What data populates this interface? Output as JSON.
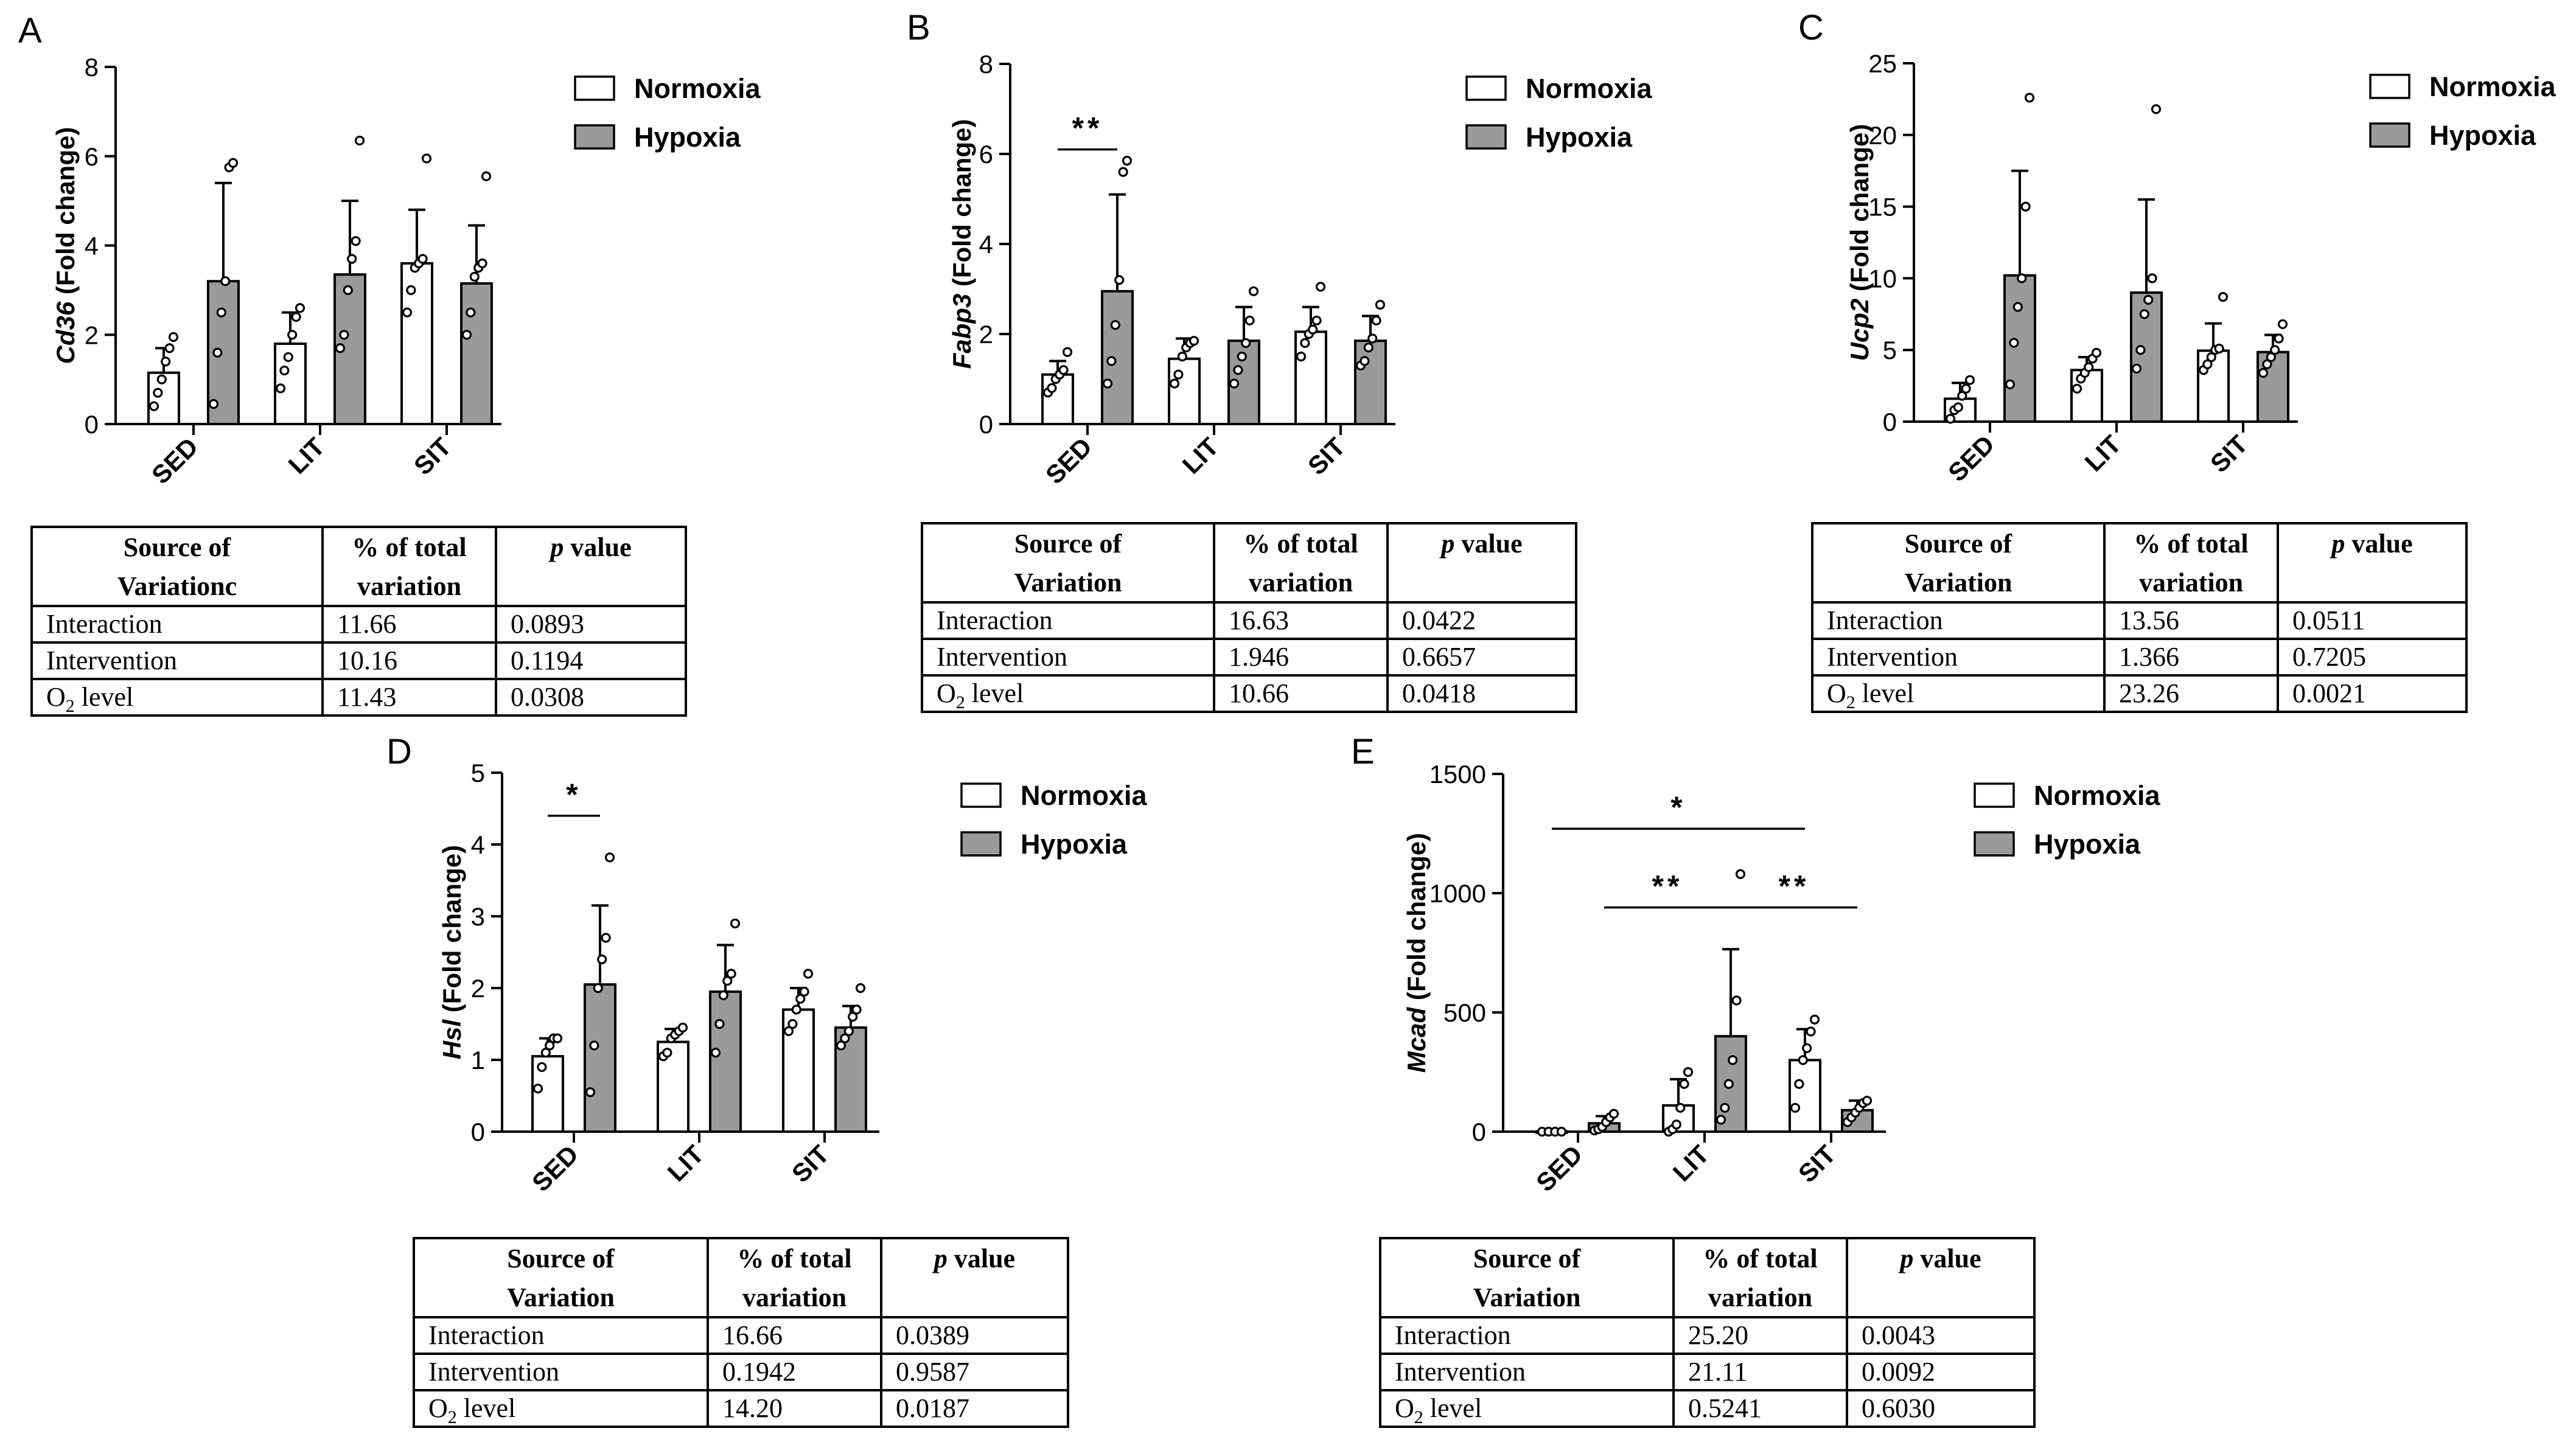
{
  "legend": {
    "normoxia": "Normoxia",
    "hypoxia": "Hypoxia"
  },
  "colors": {
    "normoxia": "#ffffff",
    "hypoxia": "#9a9a9a",
    "stroke": "#000000"
  },
  "table_headers": {
    "source_line1": "Source  of",
    "source_line2_default": "Variation",
    "pct_line1": "% of total",
    "pct_line2": "variation",
    "p_italic": "p",
    "p_rest": " value"
  },
  "chart_data": [
    {
      "panel": "A",
      "type": "bar",
      "gene": "Cd36",
      "ylabel_rest": " (Fold change)",
      "categories": [
        "SED",
        "LIT",
        "SIT"
      ],
      "ylim": [
        0,
        8
      ],
      "yticks": [
        0,
        2,
        4,
        6,
        8
      ],
      "series": [
        {
          "name": "Normoxia",
          "values": [
            1.15,
            1.8,
            3.6
          ],
          "sd": [
            0.55,
            0.7,
            1.2
          ],
          "points": [
            [
              0.4,
              0.7,
              1.0,
              1.4,
              1.7,
              1.95
            ],
            [
              0.8,
              1.2,
              1.5,
              2.0,
              2.4,
              2.6
            ],
            [
              2.5,
              3.0,
              3.5,
              3.6,
              3.7,
              5.95
            ]
          ]
        },
        {
          "name": "Hypoxia",
          "values": [
            3.2,
            3.35,
            3.15
          ],
          "sd": [
            2.2,
            1.65,
            1.3
          ],
          "points": [
            [
              0.45,
              1.6,
              2.5,
              3.2,
              5.75,
              5.85
            ],
            [
              1.7,
              2.0,
              3.0,
              3.7,
              4.1,
              6.35
            ],
            [
              2.0,
              2.5,
              3.3,
              3.5,
              3.6,
              5.55
            ]
          ]
        }
      ],
      "significance": [],
      "table": {
        "source_line2": "Variationc",
        "rows": [
          {
            "source": "Interaction",
            "pct": "11.66",
            "p": "0.0893"
          },
          {
            "source": "Intervention",
            "pct": "10.16",
            "p": "0.1194"
          },
          {
            "source_main": "O",
            "source_sub": "2",
            "source_rest": " level",
            "pct": "11.43",
            "p": "0.0308"
          }
        ]
      }
    },
    {
      "panel": "B",
      "type": "bar",
      "gene": "Fabp3",
      "ylabel_rest": " (Fold change)",
      "categories": [
        "SED",
        "LIT",
        "SIT"
      ],
      "ylim": [
        0,
        8
      ],
      "yticks": [
        0,
        2,
        4,
        6,
        8
      ],
      "series": [
        {
          "name": "Normoxia",
          "values": [
            1.1,
            1.45,
            2.05
          ],
          "sd": [
            0.3,
            0.45,
            0.55
          ],
          "points": [
            [
              0.7,
              0.8,
              1.0,
              1.1,
              1.2,
              1.6
            ],
            [
              0.9,
              1.1,
              1.5,
              1.7,
              1.8,
              1.85
            ],
            [
              1.5,
              1.8,
              2.0,
              2.1,
              2.3,
              3.05
            ]
          ]
        },
        {
          "name": "Hypoxia",
          "values": [
            2.95,
            1.85,
            1.85
          ],
          "sd": [
            2.15,
            0.75,
            0.55
          ],
          "points": [
            [
              0.9,
              1.4,
              2.2,
              3.2,
              5.6,
              5.85
            ],
            [
              0.9,
              1.2,
              1.5,
              1.8,
              2.3,
              2.95
            ],
            [
              1.3,
              1.4,
              1.7,
              1.9,
              2.3,
              2.65
            ]
          ]
        }
      ],
      "significance": [
        {
          "label": "**",
          "from": [
            0,
            0
          ],
          "to": [
            0,
            1
          ],
          "y": 6.1
        }
      ],
      "table": {
        "source_line2": "Variation",
        "rows": [
          {
            "source": "Interaction",
            "pct": "16.63",
            "p": "0.0422"
          },
          {
            "source": "Intervention",
            "pct": "1.946",
            "p": "0.6657"
          },
          {
            "source_main": "O",
            "source_sub": "2",
            "source_rest": " level",
            "pct": "10.66",
            "p": "0.0418"
          }
        ]
      }
    },
    {
      "panel": "C",
      "type": "bar",
      "gene": "Ucp2",
      "ylabel_rest": " (Fold change)",
      "categories": [
        "SED",
        "LIT",
        "SIT"
      ],
      "ylim": [
        0,
        25
      ],
      "yticks": [
        0,
        5,
        10,
        15,
        20,
        25
      ],
      "series": [
        {
          "name": "Normoxia",
          "values": [
            1.6,
            3.6,
            4.95
          ],
          "sd": [
            1.1,
            0.9,
            1.9
          ],
          "points": [
            [
              0.2,
              0.8,
              1.0,
              1.8,
              2.3,
              2.9
            ],
            [
              2.3,
              3.0,
              3.4,
              3.8,
              4.4,
              4.8
            ],
            [
              3.6,
              4.0,
              4.5,
              5.0,
              5.1,
              8.7
            ]
          ]
        },
        {
          "name": "Hypoxia",
          "values": [
            10.2,
            9.0,
            4.85
          ],
          "sd": [
            7.3,
            6.5,
            1.2
          ],
          "points": [
            [
              2.6,
              5.5,
              8.0,
              10.0,
              15.0,
              22.6
            ],
            [
              3.7,
              5.0,
              7.5,
              8.5,
              10.0,
              21.8
            ],
            [
              3.4,
              4.0,
              4.5,
              5.0,
              5.8,
              6.8
            ]
          ]
        }
      ],
      "significance": [],
      "table": {
        "source_line2": "Variation",
        "rows": [
          {
            "source": "Interaction",
            "pct": "13.56",
            "p": "0.0511"
          },
          {
            "source": "Intervention",
            "pct": "1.366",
            "p": "0.7205"
          },
          {
            "source_main": "O",
            "source_sub": "2",
            "source_rest": " level",
            "pct": "23.26",
            "p": "0.0021"
          }
        ]
      }
    },
    {
      "panel": "D",
      "type": "bar",
      "gene": "Hsl",
      "ylabel_rest": " (Fold change)",
      "categories": [
        "SED",
        "LIT",
        "SIT"
      ],
      "ylim": [
        0,
        5
      ],
      "yticks": [
        0,
        1,
        2,
        3,
        4,
        5
      ],
      "series": [
        {
          "name": "Normoxia",
          "values": [
            1.05,
            1.25,
            1.7
          ],
          "sd": [
            0.25,
            0.18,
            0.3
          ],
          "points": [
            [
              0.6,
              0.9,
              1.1,
              1.2,
              1.3,
              1.3
            ],
            [
              1.05,
              1.1,
              1.3,
              1.35,
              1.4,
              1.45
            ],
            [
              1.4,
              1.5,
              1.7,
              1.85,
              1.95,
              2.2
            ]
          ]
        },
        {
          "name": "Hypoxia",
          "values": [
            2.05,
            1.95,
            1.45
          ],
          "sd": [
            1.1,
            0.65,
            0.3
          ],
          "points": [
            [
              0.55,
              1.2,
              2.0,
              2.4,
              2.7,
              3.82
            ],
            [
              1.1,
              1.5,
              1.9,
              2.1,
              2.2,
              2.9
            ],
            [
              1.2,
              1.3,
              1.4,
              1.6,
              1.7,
              2.0
            ]
          ]
        }
      ],
      "significance": [
        {
          "label": "*",
          "from": [
            0,
            0
          ],
          "to": [
            0,
            1
          ],
          "y": 4.4
        }
      ],
      "table": {
        "source_line2": "Variation",
        "rows": [
          {
            "source": "Interaction",
            "pct": "16.66",
            "p": "0.0389"
          },
          {
            "source": "Intervention",
            "pct": "0.1942",
            "p": "0.9587"
          },
          {
            "source_main": "O",
            "source_sub": "2",
            "source_rest": " level",
            "pct": "14.20",
            "p": "0.0187"
          }
        ]
      }
    },
    {
      "panel": "E",
      "type": "bar",
      "gene": "Mcad",
      "ylabel_rest": " (Fold change)",
      "categories": [
        "SED",
        "LIT",
        "SIT"
      ],
      "ylim": [
        0,
        1500
      ],
      "yticks": [
        0,
        500,
        1000,
        1500
      ],
      "series": [
        {
          "name": "Normoxia",
          "values": [
            1,
            110,
            300
          ],
          "sd": [
            0,
            110,
            130
          ],
          "points": [
            [
              0,
              0,
              0,
              0
            ],
            [
              0,
              10,
              30,
              100,
              200,
              250
            ],
            [
              100,
              200,
              300,
              350,
              420,
              470
            ]
          ]
        },
        {
          "name": "Hypoxia",
          "values": [
            35,
            400,
            90
          ],
          "sd": [
            30,
            365,
            40
          ],
          "points": [
            [
              5,
              10,
              20,
              40,
              60,
              75
            ],
            [
              50,
              100,
              200,
              300,
              550,
              1080
            ],
            [
              40,
              60,
              80,
              100,
              120,
              130
            ]
          ]
        }
      ],
      "significance": [
        {
          "label": "*",
          "from": [
            0,
            0
          ],
          "to": [
            2,
            0
          ],
          "y": 1270
        },
        {
          "label": "**",
          "from": [
            0,
            1
          ],
          "to": [
            1,
            1
          ],
          "y": 940
        },
        {
          "label": "**",
          "from": [
            1,
            1
          ],
          "to": [
            2,
            1
          ],
          "y": 940
        }
      ],
      "table": {
        "source_line2": "Variation",
        "rows": [
          {
            "source": "Interaction",
            "pct": "25.20",
            "p": "0.0043"
          },
          {
            "source": "Intervention",
            "pct": "21.11",
            "p": "0.0092"
          },
          {
            "source_main": "O",
            "source_sub": "2",
            "source_rest": " level",
            "pct": "0.5241",
            "p": "0.6030"
          }
        ]
      }
    }
  ]
}
